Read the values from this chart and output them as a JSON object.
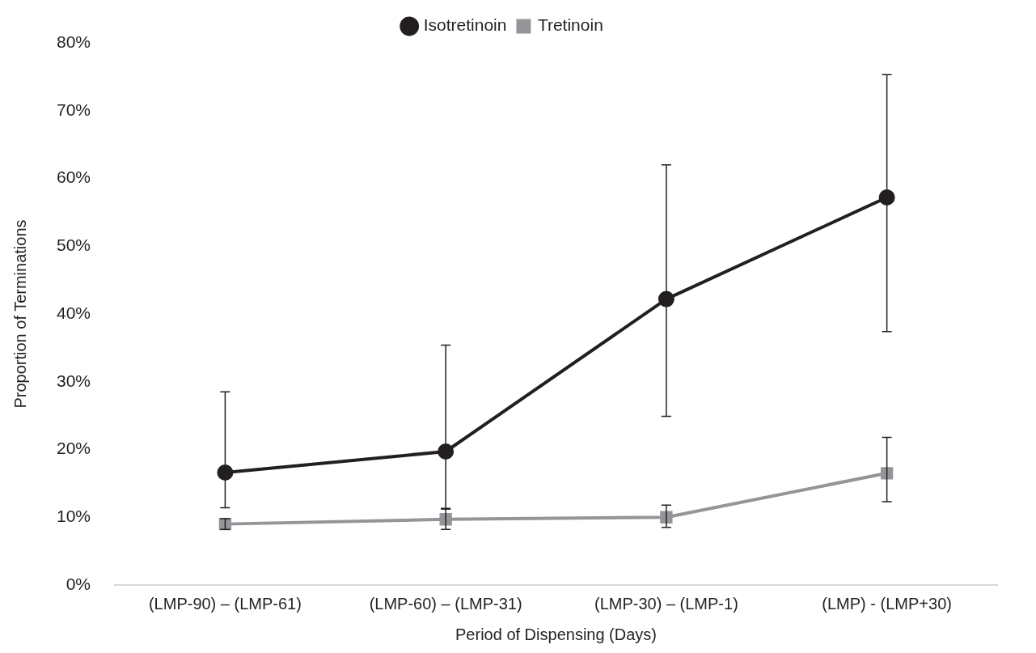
{
  "chart_data": {
    "type": "line",
    "xlabel": "Period of Dispensing (Days)",
    "ylabel": "Proportion of Terminations",
    "categories": [
      "(LMP-90) – (LMP-61)",
      "(LMP-60) – (LMP-31)",
      "(LMP-30) – (LMP-1)",
      "(LMP) - (LMP+30)"
    ],
    "series": [
      {
        "name": "Isotretinoin",
        "color": "#231f20",
        "marker": "circle",
        "values": [
          16.6,
          19.7,
          42.2,
          57.2
        ],
        "errors": [
          [
            11.4,
            28.5
          ],
          [
            11.3,
            35.4
          ],
          [
            24.9,
            62.0
          ],
          [
            37.4,
            75.3
          ]
        ]
      },
      {
        "name": "Tretinoin",
        "color": "#939598",
        "marker": "square",
        "values": [
          9.0,
          9.7,
          10.0,
          16.5
        ],
        "errors": [
          [
            8.2,
            9.8
          ],
          [
            8.2,
            11.2
          ],
          [
            8.5,
            11.8
          ],
          [
            12.3,
            21.8
          ]
        ]
      }
    ],
    "ylim": [
      0,
      80
    ],
    "yticks": [
      {
        "value": 0,
        "label": "0%"
      },
      {
        "value": 10,
        "label": "10%"
      },
      {
        "value": 20,
        "label": "20%"
      },
      {
        "value": 30,
        "label": "30%"
      },
      {
        "value": 40,
        "label": "40%"
      },
      {
        "value": 50,
        "label": "50%"
      },
      {
        "value": 60,
        "label": "60%"
      },
      {
        "value": 70,
        "label": "70%"
      },
      {
        "value": 80,
        "label": "80%"
      }
    ],
    "grid": false,
    "legend": "top",
    "line_style": "solid"
  }
}
